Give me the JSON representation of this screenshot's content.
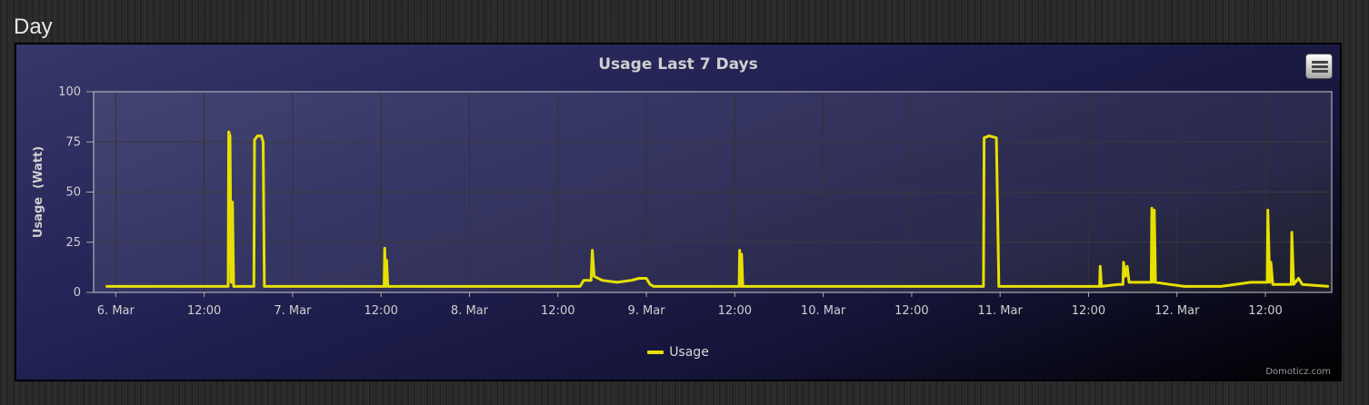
{
  "page": {
    "section_title": "Day"
  },
  "colors": {
    "series": "#e6e000",
    "grid": "#4a4a4a",
    "axis_text": "#cfcfcf"
  },
  "credits": "Domoticz.com",
  "menu": {
    "icon": "hamburger-icon"
  },
  "chart_data": {
    "type": "line",
    "title": "Usage Last 7 Days",
    "ylabel": "Usage  (Watt)",
    "xlabel": "",
    "ylim": [
      0,
      100
    ],
    "yticks": [
      0,
      25,
      50,
      75,
      100
    ],
    "xlim": [
      "2024-03-05T21:00",
      "2024-03-12T21:00"
    ],
    "xticks": [
      {
        "t": "2024-03-06T00:00",
        "label": "6. Mar"
      },
      {
        "t": "2024-03-06T12:00",
        "label": "12:00"
      },
      {
        "t": "2024-03-07T00:00",
        "label": "7. Mar"
      },
      {
        "t": "2024-03-07T12:00",
        "label": "12:00"
      },
      {
        "t": "2024-03-08T00:00",
        "label": "8. Mar"
      },
      {
        "t": "2024-03-08T12:00",
        "label": "12:00"
      },
      {
        "t": "2024-03-09T00:00",
        "label": "9. Mar"
      },
      {
        "t": "2024-03-09T12:00",
        "label": "12:00"
      },
      {
        "t": "2024-03-10T00:00",
        "label": "10. Mar"
      },
      {
        "t": "2024-03-10T12:00",
        "label": "12:00"
      },
      {
        "t": "2024-03-11T00:00",
        "label": "11. Mar"
      },
      {
        "t": "2024-03-11T12:00",
        "label": "12:00"
      },
      {
        "t": "2024-03-12T00:00",
        "label": "12. Mar"
      },
      {
        "t": "2024-03-12T12:00",
        "label": "12:00"
      }
    ],
    "grid": true,
    "legend_position": "bottom-center",
    "series": [
      {
        "name": "Usage",
        "color": "#e6e000",
        "points": [
          [
            "2024-03-05T22:40",
            3
          ],
          [
            "2024-03-06T01:00",
            3
          ],
          [
            "2024-03-06T04:00",
            3
          ],
          [
            "2024-03-06T07:00",
            3
          ],
          [
            "2024-03-06T10:00",
            3
          ],
          [
            "2024-03-06T13:30",
            3
          ],
          [
            "2024-03-06T15:15",
            3
          ],
          [
            "2024-03-06T15:20",
            80
          ],
          [
            "2024-03-06T15:30",
            78
          ],
          [
            "2024-03-06T15:40",
            5
          ],
          [
            "2024-03-06T15:50",
            45
          ],
          [
            "2024-03-06T16:00",
            3
          ],
          [
            "2024-03-06T18:45",
            3
          ],
          [
            "2024-03-06T18:50",
            76
          ],
          [
            "2024-03-06T19:15",
            78
          ],
          [
            "2024-03-06T19:45",
            78
          ],
          [
            "2024-03-06T20:00",
            75
          ],
          [
            "2024-03-06T20:10",
            3
          ],
          [
            "2024-03-07T00:00",
            3
          ],
          [
            "2024-03-07T05:00",
            3
          ],
          [
            "2024-03-07T09:00",
            3
          ],
          [
            "2024-03-07T12:25",
            3
          ],
          [
            "2024-03-07T12:30",
            22
          ],
          [
            "2024-03-07T12:40",
            3
          ],
          [
            "2024-03-07T12:45",
            16
          ],
          [
            "2024-03-07T12:55",
            3
          ],
          [
            "2024-03-07T18:00",
            3
          ],
          [
            "2024-03-08T00:00",
            3
          ],
          [
            "2024-03-08T06:00",
            3
          ],
          [
            "2024-03-08T12:00",
            3
          ],
          [
            "2024-03-08T15:00",
            3
          ],
          [
            "2024-03-08T15:30",
            6
          ],
          [
            "2024-03-08T16:30",
            6
          ],
          [
            "2024-03-08T16:40",
            21
          ],
          [
            "2024-03-08T16:55",
            8
          ],
          [
            "2024-03-08T18:00",
            6
          ],
          [
            "2024-03-08T20:00",
            5
          ],
          [
            "2024-03-08T22:00",
            6
          ],
          [
            "2024-03-08T23:00",
            7
          ],
          [
            "2024-03-09T00:00",
            7
          ],
          [
            "2024-03-09T00:30",
            4
          ],
          [
            "2024-03-09T01:00",
            3
          ],
          [
            "2024-03-09T06:00",
            3
          ],
          [
            "2024-03-09T12:00",
            3
          ],
          [
            "2024-03-09T12:35",
            3
          ],
          [
            "2024-03-09T12:40",
            21
          ],
          [
            "2024-03-09T12:50",
            3
          ],
          [
            "2024-03-09T12:55",
            19
          ],
          [
            "2024-03-09T13:05",
            3
          ],
          [
            "2024-03-09T18:00",
            3
          ],
          [
            "2024-03-10T00:00",
            3
          ],
          [
            "2024-03-10T06:00",
            3
          ],
          [
            "2024-03-10T12:00",
            3
          ],
          [
            "2024-03-10T18:00",
            3
          ],
          [
            "2024-03-10T21:45",
            3
          ],
          [
            "2024-03-10T21:50",
            77
          ],
          [
            "2024-03-10T22:30",
            78
          ],
          [
            "2024-03-10T23:30",
            77
          ],
          [
            "2024-03-10T23:50",
            3
          ],
          [
            "2024-03-11T06:00",
            3
          ],
          [
            "2024-03-11T12:00",
            3
          ],
          [
            "2024-03-11T13:30",
            3
          ],
          [
            "2024-03-11T13:35",
            13
          ],
          [
            "2024-03-11T13:45",
            3
          ],
          [
            "2024-03-11T16:00",
            4
          ],
          [
            "2024-03-11T16:40",
            4
          ],
          [
            "2024-03-11T16:45",
            15
          ],
          [
            "2024-03-11T17:00",
            8
          ],
          [
            "2024-03-11T17:15",
            13
          ],
          [
            "2024-03-11T17:30",
            5
          ],
          [
            "2024-03-11T20:30",
            5
          ],
          [
            "2024-03-11T20:35",
            42
          ],
          [
            "2024-03-11T20:50",
            5
          ],
          [
            "2024-03-11T20:55",
            41
          ],
          [
            "2024-03-11T21:05",
            5
          ],
          [
            "2024-03-11T23:00",
            4
          ],
          [
            "2024-03-12T01:00",
            3
          ],
          [
            "2024-03-12T06:00",
            3
          ],
          [
            "2024-03-12T10:00",
            5
          ],
          [
            "2024-03-12T12:00",
            5
          ],
          [
            "2024-03-12T12:15",
            5
          ],
          [
            "2024-03-12T12:20",
            41
          ],
          [
            "2024-03-12T12:35",
            5
          ],
          [
            "2024-03-12T12:45",
            15
          ],
          [
            "2024-03-12T13:00",
            4
          ],
          [
            "2024-03-12T15:30",
            4
          ],
          [
            "2024-03-12T15:35",
            30
          ],
          [
            "2024-03-12T15:50",
            4
          ],
          [
            "2024-03-12T16:30",
            7
          ],
          [
            "2024-03-12T17:00",
            4
          ],
          [
            "2024-03-12T20:35",
            3
          ]
        ]
      }
    ]
  }
}
